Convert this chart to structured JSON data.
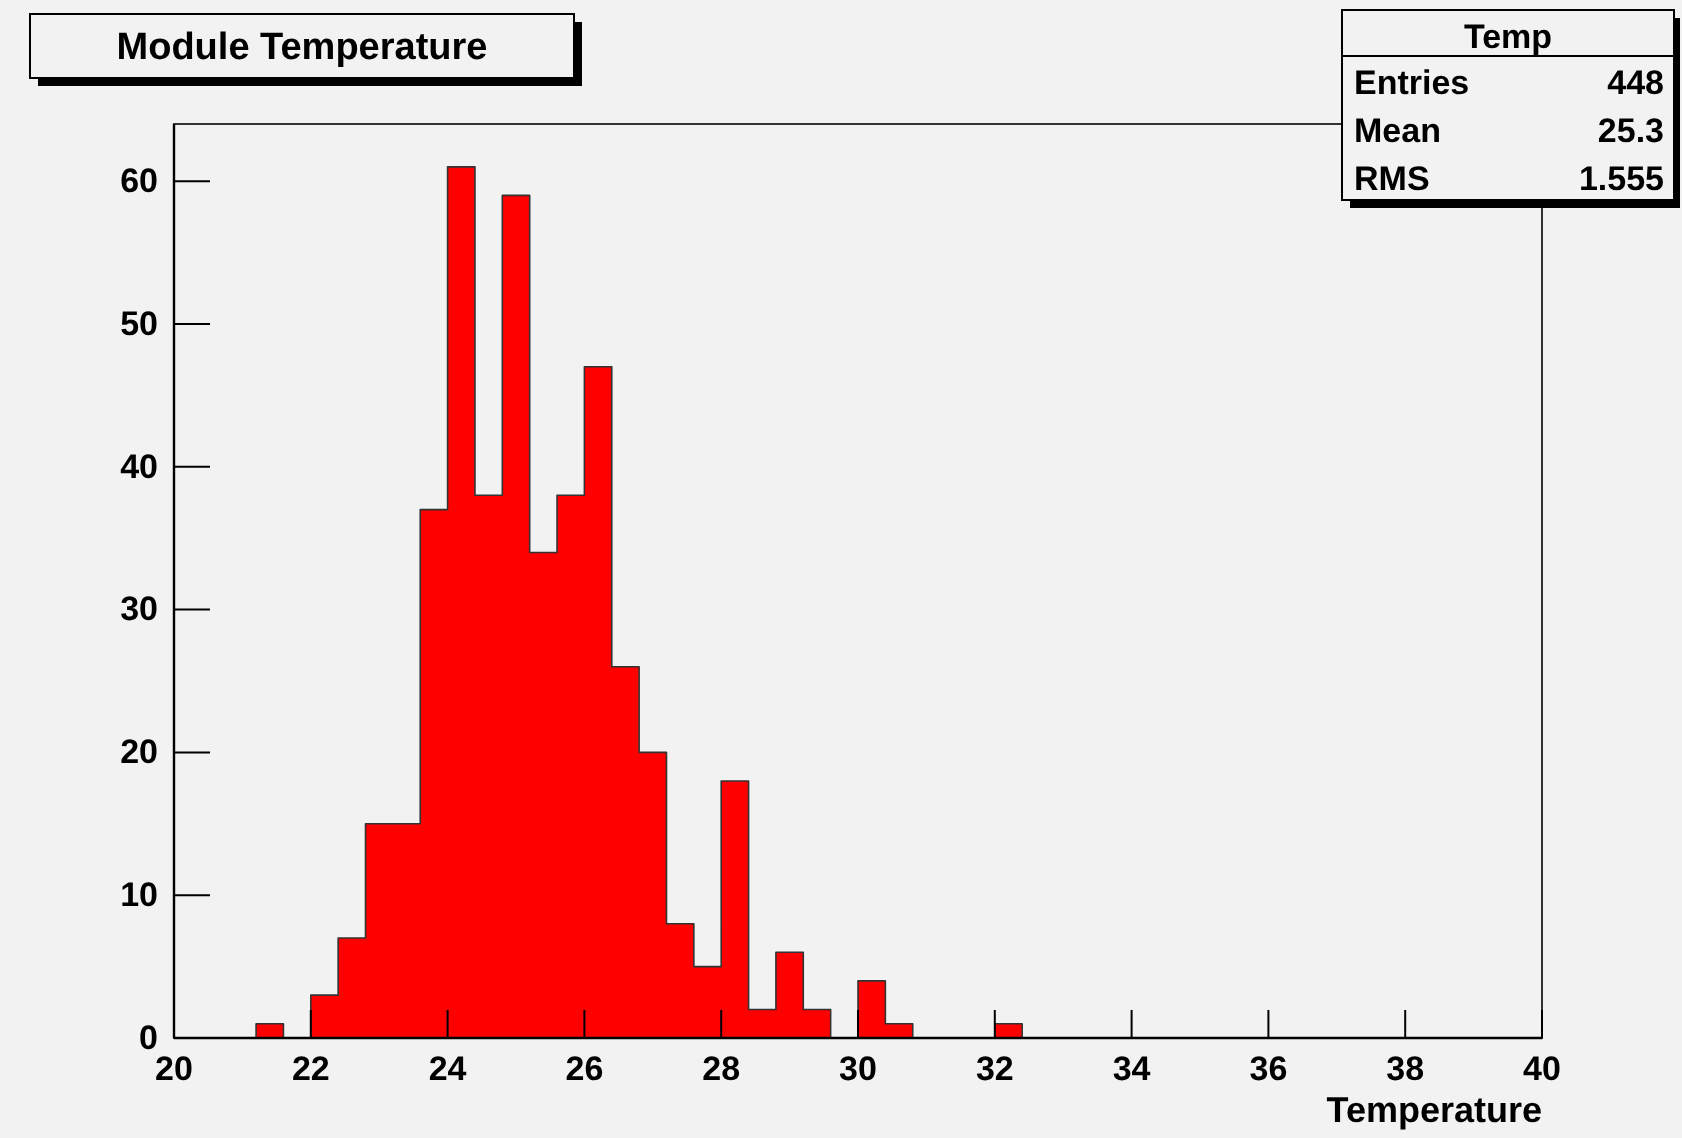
{
  "chart_data": {
    "type": "histogram",
    "title": "Module Temperature",
    "xlabel": "Temperature",
    "bins": [
      20,
      20.4,
      20.8,
      21.2,
      21.6,
      22,
      22.4,
      22.8,
      23.2,
      23.6,
      24,
      24.4,
      24.8,
      25.2,
      25.6,
      26,
      26.4,
      26.8,
      27.2,
      27.6,
      28,
      28.4,
      28.8,
      29.2,
      29.6,
      30,
      30.4,
      30.8,
      31.2,
      31.6,
      32,
      32.4,
      32.8,
      33.2,
      33.6,
      34,
      34.4,
      34.8,
      35.2,
      35.6,
      36,
      36.4,
      36.8,
      37.2,
      37.6,
      38,
      38.4,
      38.8,
      39.2,
      39.6,
      40
    ],
    "values": [
      0,
      0,
      0,
      1,
      0,
      3,
      7,
      15,
      15,
      37,
      61,
      38,
      59,
      34,
      38,
      47,
      26,
      20,
      8,
      5,
      18,
      2,
      6,
      2,
      0,
      4,
      1,
      0,
      0,
      0,
      1,
      0,
      0,
      0,
      0,
      0,
      0,
      0,
      0,
      0,
      0,
      0,
      0,
      0,
      0,
      0,
      0,
      0,
      0,
      0
    ],
    "color": "#ff0000",
    "xlim": [
      20,
      40
    ],
    "ylim": [
      0,
      64
    ],
    "xticks": [
      20,
      22,
      24,
      26,
      28,
      30,
      32,
      34,
      36,
      38,
      40
    ],
    "yticks": [
      0,
      10,
      20,
      30,
      40,
      50,
      60
    ],
    "annotations": [
      "Temp",
      "Entries",
      "448",
      "Mean",
      "25.3",
      "RMS",
      "1.555"
    ]
  }
}
